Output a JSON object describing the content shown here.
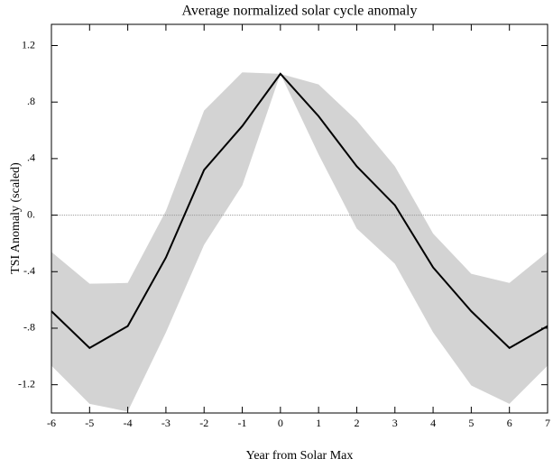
{
  "chart_data": {
    "type": "line",
    "title": "Average normalized solar cycle anomaly",
    "x_label": "Year from Solar Max",
    "y_label": "TSI Anomaly (scaled)",
    "x": [
      -6,
      -5,
      -4,
      -3,
      -2,
      -1,
      0,
      1,
      2,
      3,
      4,
      5,
      6,
      7
    ],
    "values": [
      -0.68,
      -0.94,
      -0.785,
      -0.3,
      0.32,
      0.63,
      1.0,
      0.7,
      0.345,
      0.07,
      -0.37,
      -0.68,
      -0.94,
      -0.785
    ],
    "color": "#000000",
    "band_upper": [
      -0.26,
      -0.485,
      -0.48,
      0.03,
      0.74,
      1.01,
      1.0,
      0.925,
      0.67,
      0.345,
      -0.13,
      -0.415,
      -0.48,
      -0.26
    ],
    "band_lower": [
      -1.065,
      -1.335,
      -1.39,
      -0.83,
      -0.21,
      0.21,
      1.0,
      0.43,
      -0.095,
      -0.345,
      -0.83,
      -1.205,
      -1.335,
      -1.065
    ],
    "band_color": "#d3d3d3",
    "xlim": [
      -6,
      7
    ],
    "xticks": [
      -6,
      -5,
      -4,
      -3,
      -2,
      -1,
      0,
      1,
      2,
      3,
      4,
      5,
      6,
      7
    ],
    "ylim": [
      -1.4,
      1.35
    ],
    "yticks": [
      1.2,
      {
        "value": 0.8,
        "label": ".8"
      },
      {
        "value": 0.4,
        "label": ".4"
      },
      {
        "value": 0,
        "label": "0."
      },
      {
        "value": -0.4,
        "label": "-.4"
      },
      {
        "value": -0.8,
        "label": "-.8"
      },
      -1.2
    ],
    "zero_line": true
  }
}
